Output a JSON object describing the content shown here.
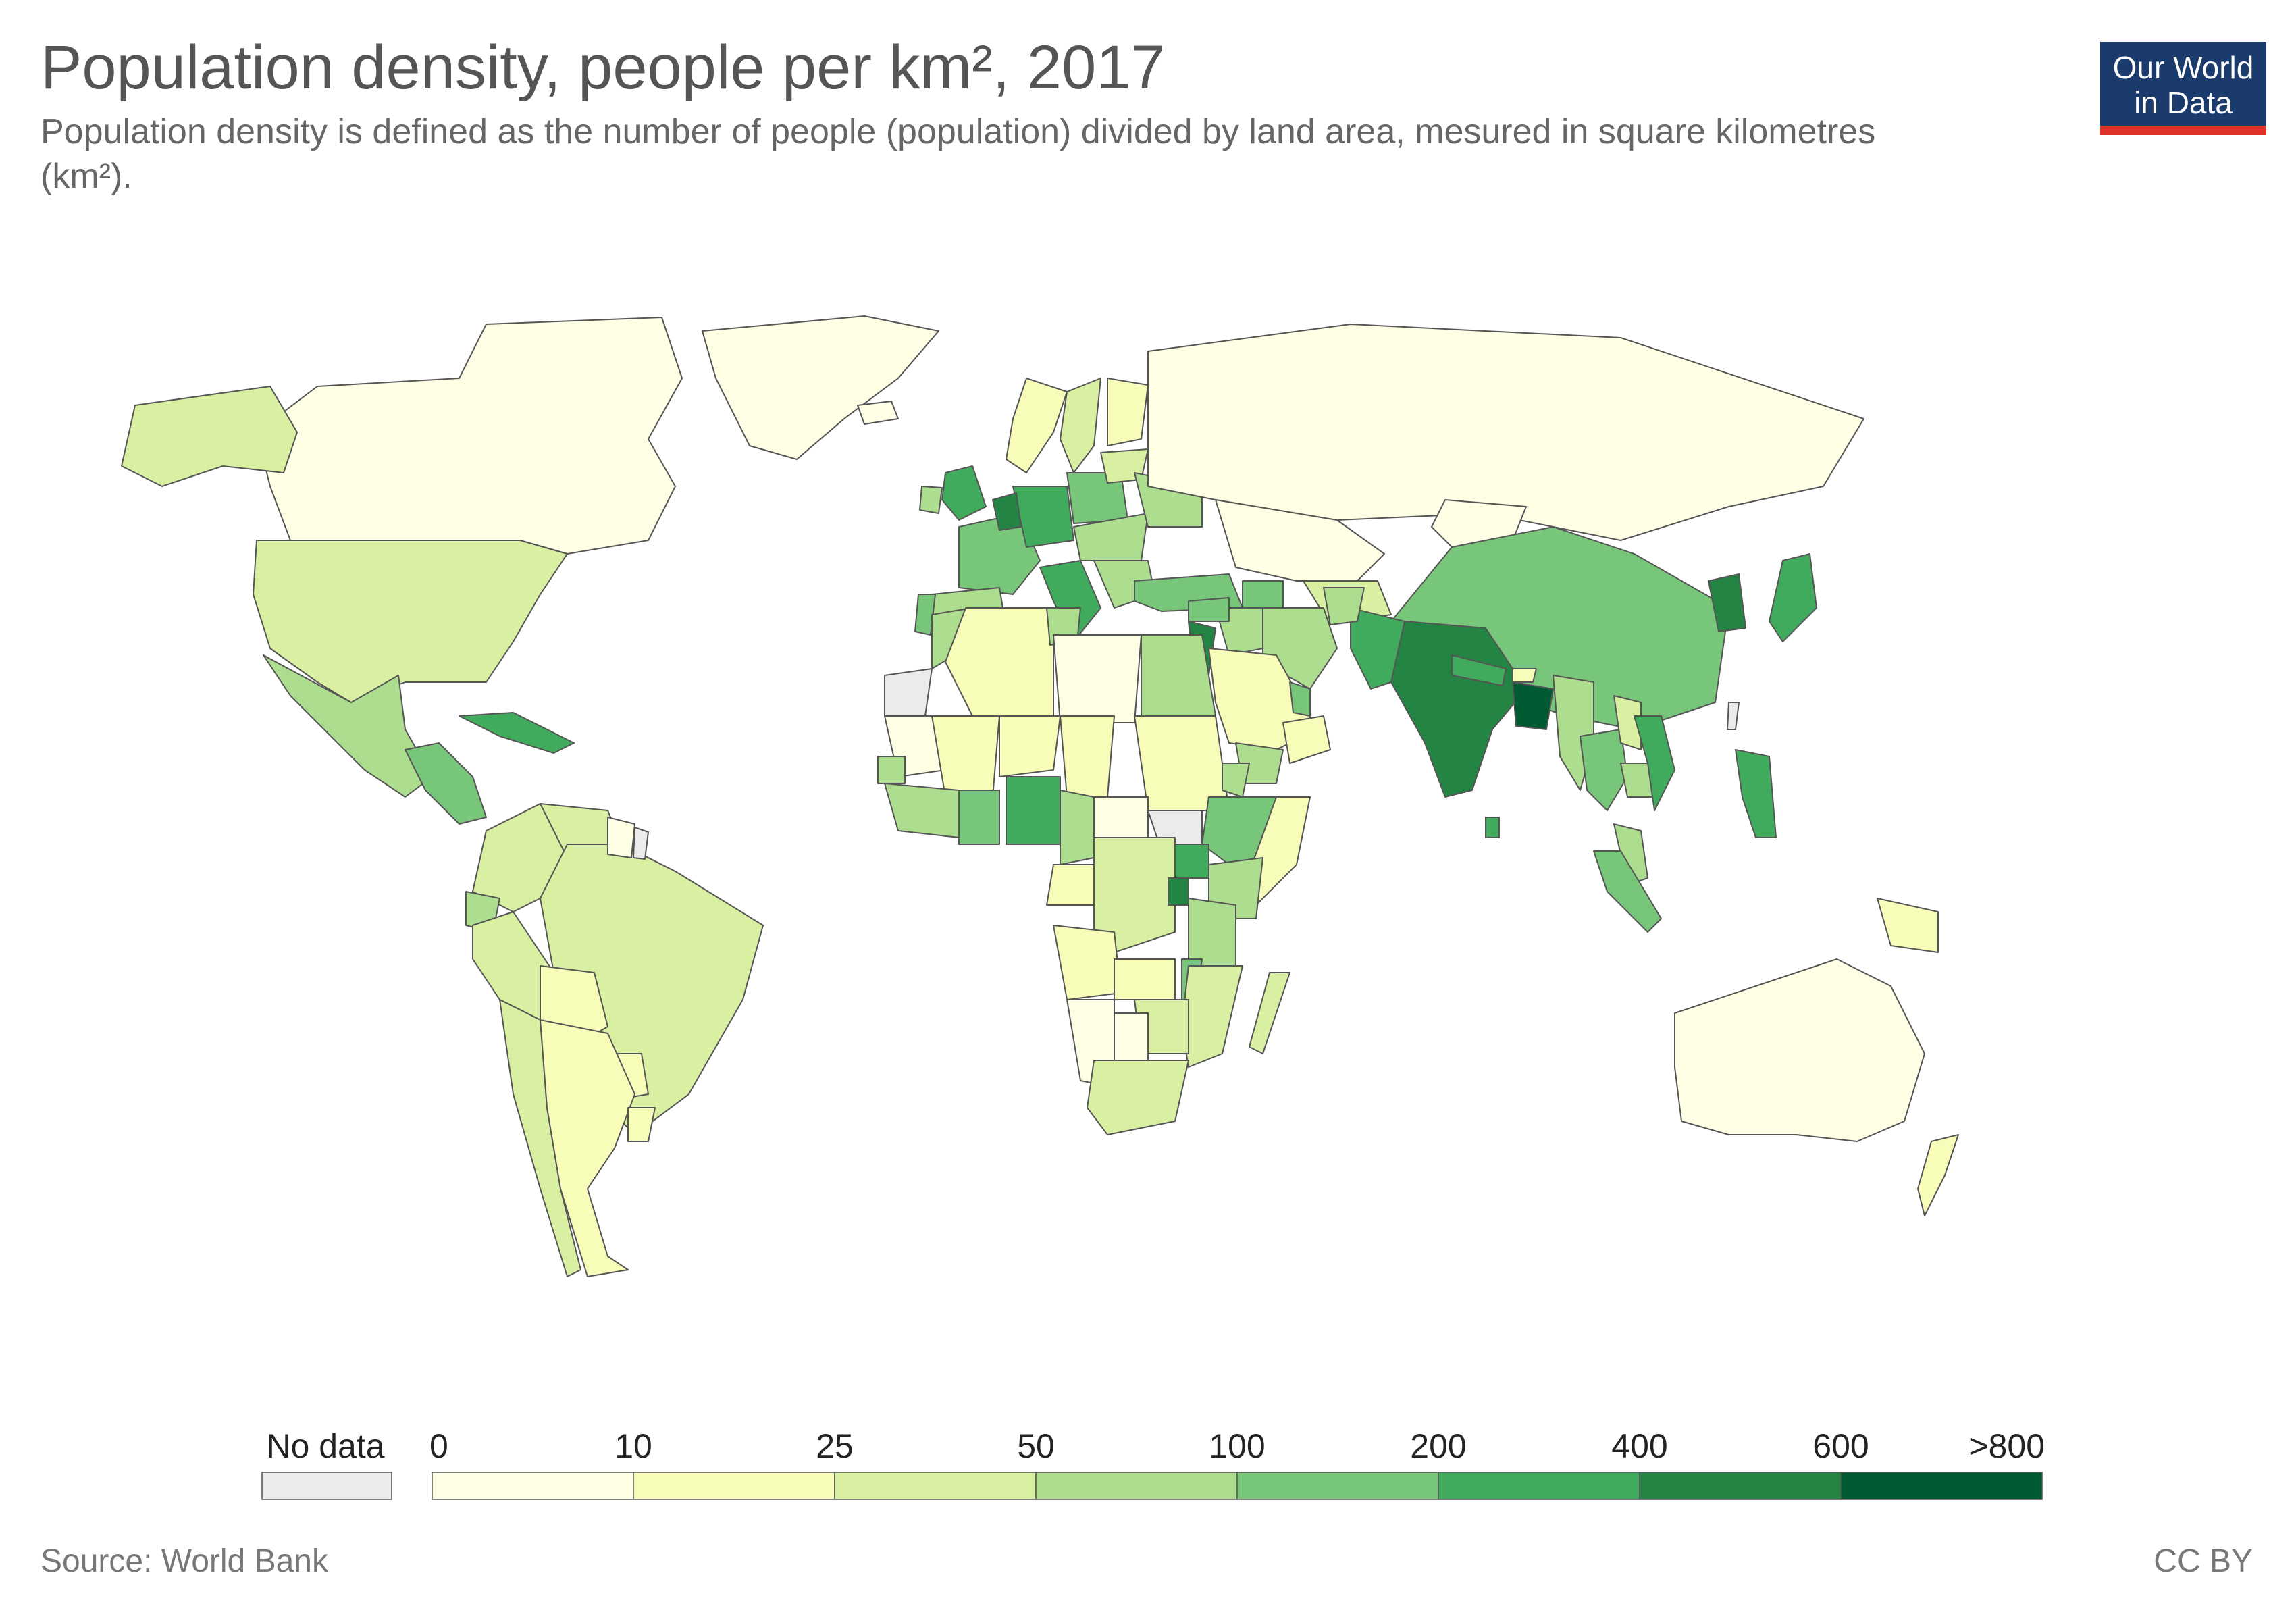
{
  "header": {
    "title": "Population density, people per km², 2017",
    "subtitle": "Population density is defined as the number of people (population) divided by land area, mesured in square kilometres (km²)."
  },
  "logo": {
    "line1": "Our World",
    "line2": "in Data",
    "bg_color": "#1b3b6d",
    "bar_color": "#e0312b"
  },
  "footer": {
    "source": "Source: World Bank",
    "license": "CC BY"
  },
  "legend": {
    "no_data_label": "No data",
    "no_data_color": "#ebebeb",
    "bins": [
      {
        "min": 0,
        "max": 10,
        "color": "#ffffe5"
      },
      {
        "min": 10,
        "max": 25,
        "color": "#f7fcb9"
      },
      {
        "min": 25,
        "max": 50,
        "color": "#d9f0a3"
      },
      {
        "min": 50,
        "max": 100,
        "color": "#addd8e"
      },
      {
        "min": 100,
        "max": 200,
        "color": "#78c679"
      },
      {
        "min": 200,
        "max": 400,
        "color": "#41ab5d"
      },
      {
        "min": 400,
        "max": 600,
        "color": "#238443"
      },
      {
        "min": 600,
        "max": 800,
        "color": "#005a32"
      }
    ],
    "tick_labels": [
      "0",
      "10",
      "25",
      "50",
      "100",
      "200",
      "400",
      "600",
      ">800"
    ]
  },
  "map": {
    "regions": [
      {
        "name": "Canada",
        "value": 4
      },
      {
        "name": "Alaska (United States)",
        "value": 36
      },
      {
        "name": "Greenland",
        "value": 0.1
      },
      {
        "name": "United States",
        "value": 36
      },
      {
        "name": "Mexico",
        "value": 66
      },
      {
        "name": "Central America",
        "value": 120
      },
      {
        "name": "Caribbean",
        "value": 250
      },
      {
        "name": "Colombia",
        "value": 44
      },
      {
        "name": "Venezuela",
        "value": 36
      },
      {
        "name": "Ecuador",
        "value": 67
      },
      {
        "name": "Peru",
        "value": 25
      },
      {
        "name": "Brazil",
        "value": 25
      },
      {
        "name": "Bolivia",
        "value": 10
      },
      {
        "name": "Paraguay",
        "value": 17
      },
      {
        "name": "Chile",
        "value": 25
      },
      {
        "name": "Argentina",
        "value": 16
      },
      {
        "name": "Uruguay",
        "value": 20
      },
      {
        "name": "Guyana and Suriname",
        "value": 4
      },
      {
        "name": "French Guiana",
        "value": null
      },
      {
        "name": "Iceland",
        "value": 3
      },
      {
        "name": "United Kingdom",
        "value": 274
      },
      {
        "name": "Ireland",
        "value": 70
      },
      {
        "name": "France",
        "value": 122
      },
      {
        "name": "Spain",
        "value": 93
      },
      {
        "name": "Portugal",
        "value": 112
      },
      {
        "name": "Germany",
        "value": 237
      },
      {
        "name": "Benelux",
        "value": 450
      },
      {
        "name": "Italy",
        "value": 205
      },
      {
        "name": "Poland",
        "value": 124
      },
      {
        "name": "Norway",
        "value": 14
      },
      {
        "name": "Sweden",
        "value": 25
      },
      {
        "name": "Finland",
        "value": 18
      },
      {
        "name": "Baltic states",
        "value": 30
      },
      {
        "name": "Eastern Europe",
        "value": 75
      },
      {
        "name": "Balkans",
        "value": 90
      },
      {
        "name": "Ukraine and Belarus",
        "value": 60
      },
      {
        "name": "Russia",
        "value": 9
      },
      {
        "name": "Turkey",
        "value": 105
      },
      {
        "name": "Caucasus",
        "value": 100
      },
      {
        "name": "Kazakhstan",
        "value": 7
      },
      {
        "name": "Mongolia",
        "value": 2
      },
      {
        "name": "Central Asia",
        "value": 30
      },
      {
        "name": "China",
        "value": 148
      },
      {
        "name": "Korea",
        "value": 525
      },
      {
        "name": "Japan",
        "value": 348
      },
      {
        "name": "Taiwan",
        "value": null
      },
      {
        "name": "India",
        "value": 450
      },
      {
        "name": "Pakistan",
        "value": 255
      },
      {
        "name": "Afghanistan",
        "value": 55
      },
      {
        "name": "Iran",
        "value": 50
      },
      {
        "name": "Iraq",
        "value": 88
      },
      {
        "name": "Syria",
        "value": 100
      },
      {
        "name": "Levant",
        "value": 420
      },
      {
        "name": "Saudi Arabia",
        "value": 15
      },
      {
        "name": "Yemen",
        "value": 53
      },
      {
        "name": "Oman",
        "value": 15
      },
      {
        "name": "Gulf states",
        "value": 150
      },
      {
        "name": "Nepal",
        "value": 203
      },
      {
        "name": "Bhutan",
        "value": 21
      },
      {
        "name": "Bangladesh",
        "value": 1252
      },
      {
        "name": "Sri Lanka",
        "value": 345
      },
      {
        "name": "Myanmar",
        "value": 81
      },
      {
        "name": "Thailand",
        "value": 135
      },
      {
        "name": "Laos",
        "value": 30
      },
      {
        "name": "Cambodia",
        "value": 91
      },
      {
        "name": "Vietnam",
        "value": 308
      },
      {
        "name": "Malaysia",
        "value": 96
      },
      {
        "name": "Indonesia",
        "value": 145
      },
      {
        "name": "Philippines",
        "value": 351
      },
      {
        "name": "Papua New Guinea",
        "value": 18
      },
      {
        "name": "Australia",
        "value": 3
      },
      {
        "name": "New Zealand",
        "value": 18
      },
      {
        "name": "Morocco",
        "value": 80
      },
      {
        "name": "Western Sahara",
        "value": null
      },
      {
        "name": "Algeria",
        "value": 17
      },
      {
        "name": "Tunisia",
        "value": 74
      },
      {
        "name": "Libya",
        "value": 4
      },
      {
        "name": "Egypt",
        "value": 98
      },
      {
        "name": "Mauritania",
        "value": 4
      },
      {
        "name": "Mali",
        "value": 15
      },
      {
        "name": "Niger",
        "value": 17
      },
      {
        "name": "Chad",
        "value": 12
      },
      {
        "name": "Sudan",
        "value": 22
      },
      {
        "name": "South Sudan",
        "value": null
      },
      {
        "name": "Eritrea",
        "value": 50
      },
      {
        "name": "Ethiopia",
        "value": 105
      },
      {
        "name": "Somalia",
        "value": 23
      },
      {
        "name": "Kenya",
        "value": 88
      },
      {
        "name": "Senegal and Gambia",
        "value": 80
      },
      {
        "name": "Guinea coast",
        "value": 60
      },
      {
        "name": "Ghana, Togo, Benin",
        "value": 125
      },
      {
        "name": "Nigeria",
        "value": 210
      },
      {
        "name": "Cameroon",
        "value": 52
      },
      {
        "name": "Central African Republic",
        "value": 7
      },
      {
        "name": "Gabon and Congo",
        "value": 15
      },
      {
        "name": "DR Congo",
        "value": 36
      },
      {
        "name": "Uganda",
        "value": 213
      },
      {
        "name": "Rwanda and Burundi",
        "value": 470
      },
      {
        "name": "Tanzania",
        "value": 64
      },
      {
        "name": "Angola",
        "value": 24
      },
      {
        "name": "Zambia",
        "value": 23
      },
      {
        "name": "Malawi",
        "value": 187
      },
      {
        "name": "Mozambique",
        "value": 37
      },
      {
        "name": "Zimbabwe",
        "value": 42
      },
      {
        "name": "Namibia",
        "value": 3
      },
      {
        "name": "Botswana",
        "value": 4
      },
      {
        "name": "South Africa",
        "value": 47
      },
      {
        "name": "Madagascar",
        "value": 44
      }
    ]
  }
}
